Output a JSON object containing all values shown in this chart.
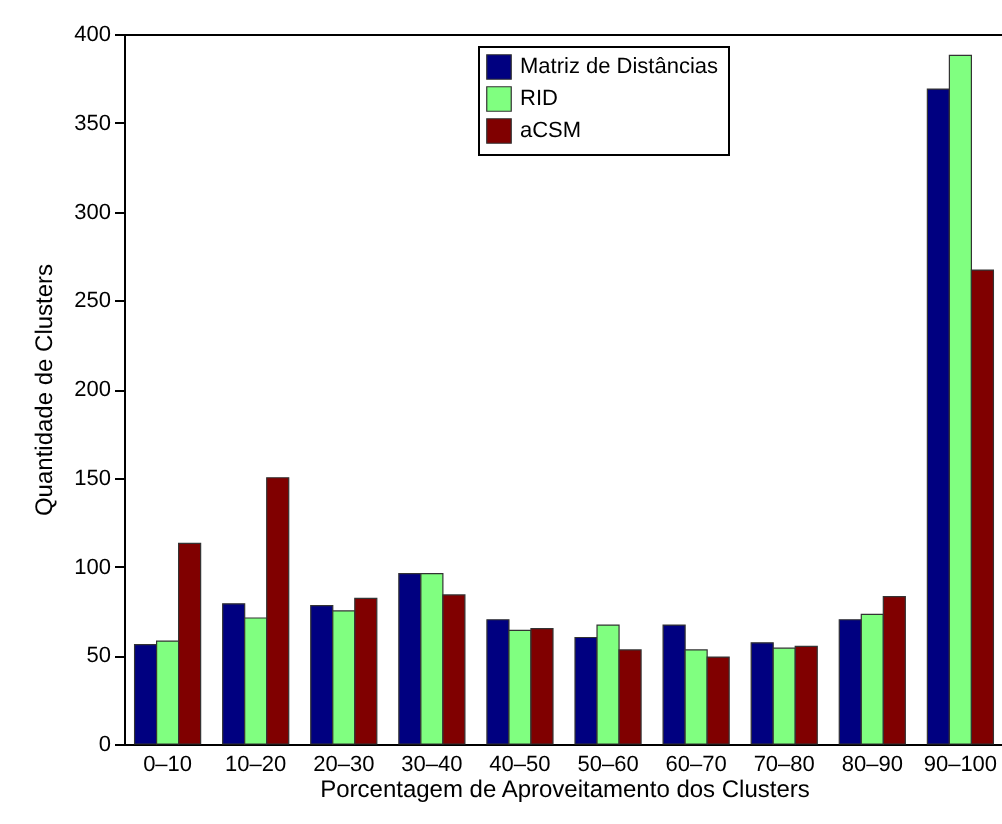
{
  "chart_data": {
    "type": "bar",
    "xlabel": "Porcentagem de Aproveitamento dos Clusters",
    "ylabel": "Quantidade de Clusters",
    "categories": [
      "0–10",
      "10–20",
      "20–30",
      "30–40",
      "40–50",
      "50–60",
      "60–70",
      "70–80",
      "80–90",
      "90–100"
    ],
    "series": [
      {
        "name": "Matriz de Distâncias",
        "color": "#000080",
        "values": [
          56,
          79,
          78,
          96,
          70,
          60,
          67,
          57,
          70,
          369
        ]
      },
      {
        "name": "RID",
        "color": "#80ff80",
        "values": [
          58,
          71,
          75,
          96,
          64,
          67,
          53,
          54,
          73,
          388
        ]
      },
      {
        "name": "aCSM",
        "color": "#800000",
        "values": [
          113,
          150,
          82,
          84,
          65,
          53,
          49,
          55,
          83,
          267
        ]
      }
    ],
    "ylim": [
      0,
      400
    ],
    "yticks": [
      0,
      50,
      100,
      150,
      200,
      250,
      300,
      350,
      400
    ],
    "grid": false,
    "legend": "top right"
  }
}
